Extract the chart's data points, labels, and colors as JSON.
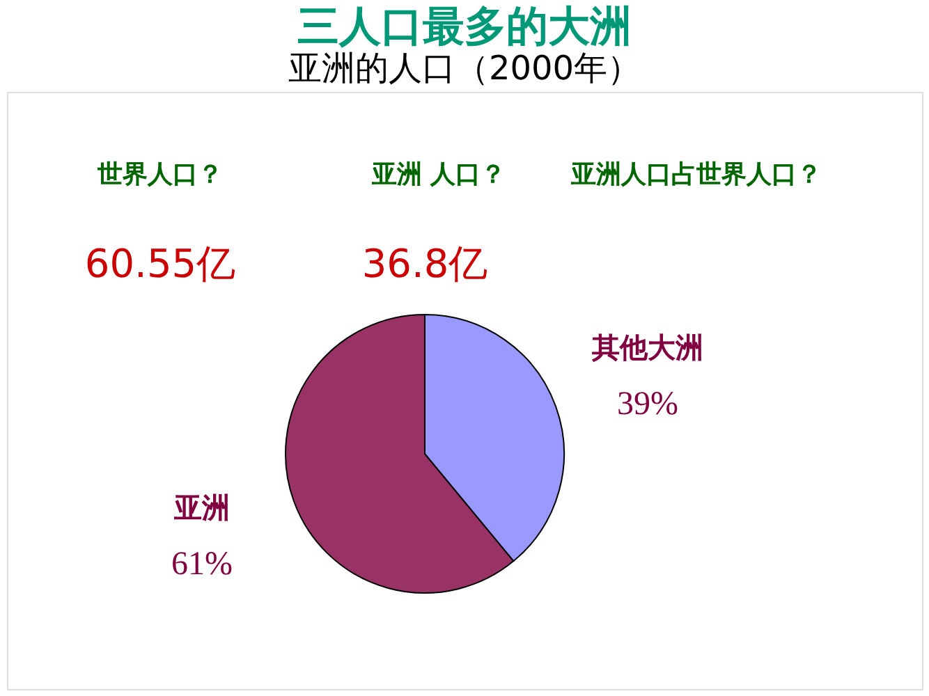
{
  "chart_data": {
    "type": "pie",
    "title": "三人口最多的大洲",
    "subtitle": "亚洲的人口（2000年）",
    "categories": [
      "亚洲",
      "其他大洲"
    ],
    "values": [
      61,
      39
    ],
    "colors": [
      "#993366",
      "#9999ff"
    ],
    "value_labels": [
      "61%",
      "39%"
    ],
    "legend": false,
    "annotations": [
      "世界人口？",
      "60.55亿",
      "亚洲 人口？",
      "36.8亿",
      "亚洲人口占世界人口？"
    ]
  }
}
